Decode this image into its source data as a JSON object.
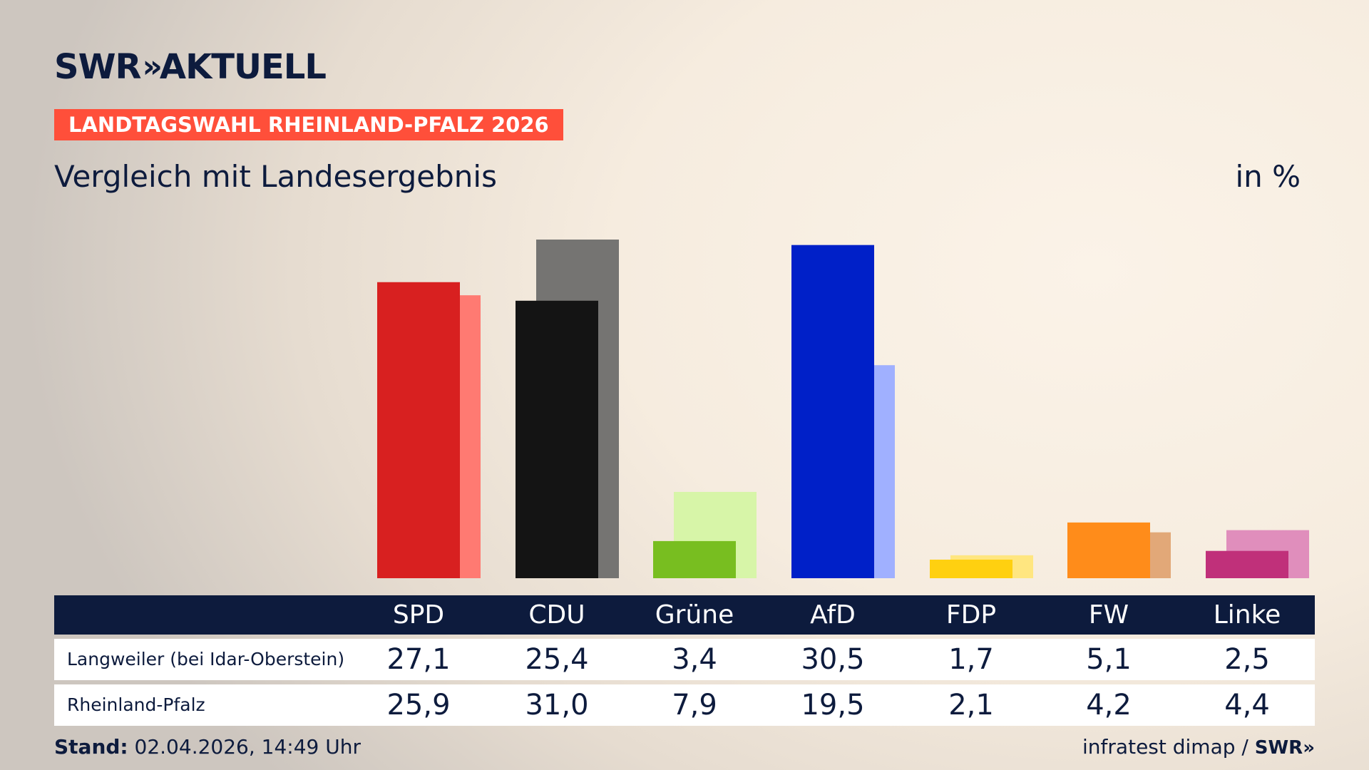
{
  "header": {
    "brand": "SWR",
    "brand_chevron": "»",
    "brand_product": "AKTUELL",
    "tag": "LANDTAGSWAHL RHEINLAND-PFALZ 2026",
    "subtitle": "Vergleich mit Landesergebnis",
    "unit": "in %"
  },
  "chart_data": {
    "type": "bar",
    "categories": [
      "SPD",
      "CDU",
      "Grüne",
      "AfD",
      "FDP",
      "FW",
      "Linke"
    ],
    "series": [
      {
        "name": "Langweiler (bei Idar-Oberstein)",
        "values": [
          27.1,
          25.4,
          3.4,
          30.5,
          1.7,
          5.1,
          2.5
        ]
      },
      {
        "name": "Rheinland-Pfalz",
        "values": [
          25.9,
          31.0,
          7.9,
          19.5,
          2.1,
          4.2,
          4.4
        ]
      }
    ],
    "colors_primary": [
      "#d82020",
      "#141414",
      "#78be20",
      "#0020c8",
      "#ffd010",
      "#ff8c1a",
      "#c0307a"
    ],
    "colors_secondary": [
      "#ff7a72",
      "#757472",
      "#d7f5a8",
      "#a0b0ff",
      "#ffe680",
      "#e2a878",
      "#e08ebc"
    ],
    "ylim": [
      0,
      31.0
    ],
    "grid": false,
    "legend": "table-below"
  },
  "table": {
    "headers": [
      "SPD",
      "CDU",
      "Grüne",
      "AfD",
      "FDP",
      "FW",
      "Linke"
    ],
    "rows": [
      {
        "label": "Langweiler (bei Idar-Oberstein)",
        "values": [
          "27,1",
          "25,4",
          "3,4",
          "30,5",
          "1,7",
          "5,1",
          "2,5"
        ]
      },
      {
        "label": "Rheinland-Pfalz",
        "values": [
          "25,9",
          "31,0",
          "7,9",
          "19,5",
          "2,1",
          "4,2",
          "4,4"
        ]
      }
    ]
  },
  "footer": {
    "stand_label": "Stand:",
    "stand_value": "02.04.2026, 14:49 Uhr",
    "source": "infratest dimap /",
    "source_brand": "SWR»"
  }
}
